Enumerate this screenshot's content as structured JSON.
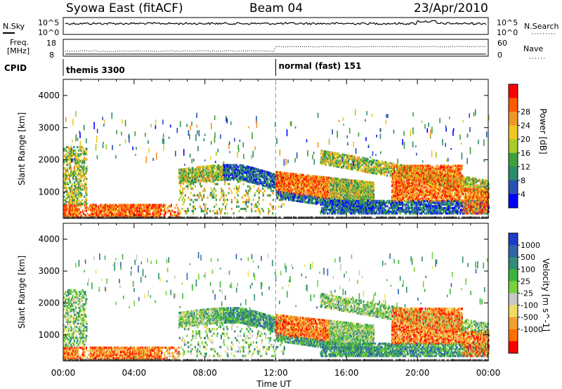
{
  "header": {
    "station": "Syowa East (fitACF)",
    "beam": "Beam 04",
    "date": "23/Apr/2010"
  },
  "strip_noise": {
    "left_label": "N.Sky",
    "right_label": "N.Search",
    "left_ticks": [
      "10^5",
      "10^0"
    ],
    "right_ticks": [
      "10^5",
      "10^0"
    ]
  },
  "strip_freq": {
    "left_label_1": "Freq.",
    "left_label_2": "[MHz]",
    "right_label": "Nave",
    "left_ticks": [
      "18",
      "8"
    ],
    "right_ticks": [
      "60",
      "0"
    ]
  },
  "cpid": {
    "label": "CPID",
    "segments": [
      {
        "name": "themis 3300",
        "start_h": 0
      },
      {
        "name": "normal (fast) 151",
        "start_h": 12
      }
    ]
  },
  "chart_data": [
    {
      "type": "heatmap",
      "ylabel": "Slant Range [km]",
      "x_range": [
        0,
        24
      ],
      "ylim": [
        180,
        4500
      ],
      "y_ticks": [
        1000,
        2000,
        3000,
        4000
      ],
      "colorbar": {
        "label": "Power [dB]",
        "ticks": [
          "4",
          "8",
          "12",
          "16",
          "20",
          "24",
          "28"
        ],
        "colors": [
          "#0000ff",
          "#2850b4",
          "#2a8a6c",
          "#3ca03c",
          "#a8cc28",
          "#f0c81e",
          "#f09628",
          "#ff5a00",
          "#ff0000"
        ]
      }
    },
    {
      "type": "heatmap",
      "ylabel": "Slant Range [km]",
      "xlabel": "Time UT",
      "x_range": [
        0,
        24
      ],
      "x_ticks": [
        "00:00",
        "04:00",
        "08:00",
        "12:00",
        "16:00",
        "20:00",
        "00:00"
      ],
      "ylim": [
        180,
        4500
      ],
      "y_ticks": [
        1000,
        2000,
        3000,
        4000
      ],
      "colorbar": {
        "label": "Velocity [m s^-1]",
        "ticks": [
          "1000",
          "500",
          "100",
          "25",
          "-25",
          "-100",
          "-500",
          "-1000"
        ],
        "colors": [
          "#1e3cc8",
          "#3264a8",
          "#328c78",
          "#3cb43c",
          "#78d23c",
          "#c8c8c8",
          "#f0dc64",
          "#f0a032",
          "#ff6e00",
          "#ff0000"
        ]
      }
    }
  ]
}
